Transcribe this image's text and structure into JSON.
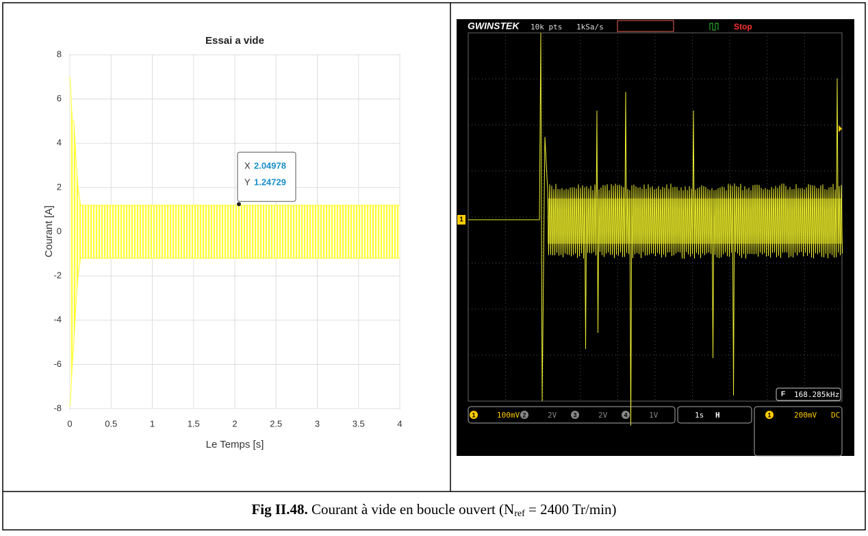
{
  "chart_data": {
    "type": "band",
    "title": "Essai a vide",
    "xlabel": "Le Temps [s]",
    "ylabel": "Courant [A]",
    "x": [
      0,
      0.01,
      0.03,
      0.05,
      0.08,
      0.1,
      0.13,
      0.16,
      4
    ],
    "upper": [
      7,
      6.5,
      5,
      5,
      3,
      2,
      1.2,
      1.2,
      1.2
    ],
    "lower": [
      -7.9,
      -7.5,
      -6,
      -5,
      -3,
      -2,
      -1.2,
      -1.2,
      -1.2
    ],
    "color": "#ffff33",
    "xlim": [
      0,
      4
    ],
    "ylim": [
      -8,
      8
    ],
    "xticks": [
      0,
      0.5,
      1,
      1.5,
      2,
      2.5,
      3,
      3.5,
      4
    ],
    "yticks": [
      -8,
      -6,
      -4,
      -2,
      0,
      2,
      4,
      6,
      8
    ],
    "grid": true,
    "datatip": {
      "x_label": "X",
      "x": 2.04978,
      "y_label": "Y",
      "y": 1.24729
    }
  },
  "scope": {
    "brand": "GWINSTEK",
    "points": "10k pts",
    "rate": "1kSa/s",
    "status": "Stop",
    "channel_marker": "1",
    "channels": [
      "1",
      "2",
      "3",
      "4"
    ],
    "scales": [
      "100mV",
      "2V",
      "2V",
      "1V"
    ],
    "timebase": "1s",
    "h_icon": "H",
    "trigger_channel": "1",
    "trigger_level": "200mV",
    "coupling": "DC",
    "freq_icon": "F",
    "frequency": "168.285kHz"
  },
  "caption": {
    "label": "Fig II.48.",
    "text": "Courant à vide en boucle ouvert (N",
    "subscript": "ref",
    "rest": " = 2400 Tr/min)"
  }
}
